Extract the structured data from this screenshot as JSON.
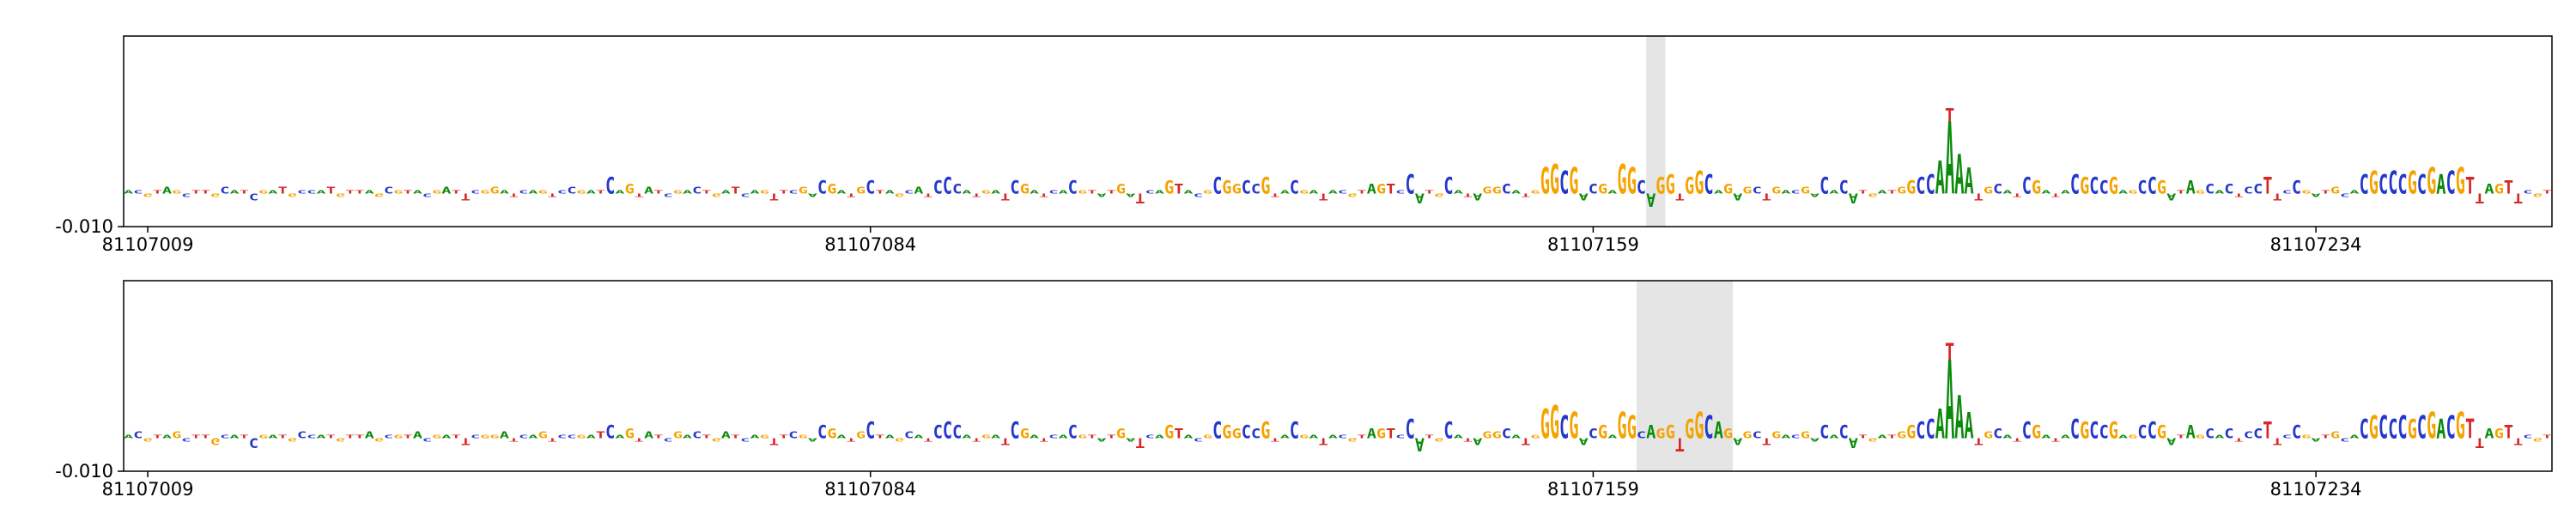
{
  "figure": {
    "kind": "genomic attribution sequence logo tracks",
    "background": "#ffffff",
    "border_color": "#000000",
    "highlight_color": "#dcdcdc"
  },
  "chart_data": {
    "type": "sequence-logo",
    "title": "",
    "xlabel": "",
    "ylabel": "",
    "x_start_bp": 81107007,
    "value_unit": 0.001,
    "ylim_milli": [
      -10,
      48
    ],
    "grid": false,
    "x_ticks": [
      {
        "bp": 81107009,
        "label": "81107009"
      },
      {
        "bp": 81107084,
        "label": "81107084"
      },
      {
        "bp": 81107159,
        "label": "81107159"
      },
      {
        "bp": 81107234,
        "label": "81107234"
      }
    ],
    "y_bottom_label": "-0.010",
    "base_colors": {
      "A": "#0c8a0c",
      "C": "#2438cc",
      "G": "#f5a300",
      "T": "#d62728"
    },
    "sequence": "ACGTAGCTTGCATCGATGCCATGTTAGCGTACGATTCGGATCAGTCCGATCAGTATCGACTGATCAGTTCGACGATGCTAGCATCCCATGATCGATCACGTATGATCAGTACGCGGCCGTACGATACGTAGTCCATGCATAGGCATGGGCGACGAGGCAGGTGGCAGAGCTGACGACACATGATGGCCAAAATGCATCGATACGCCGAGCCGATAGCACTCCTTCCGATGCACGCCCGCGACGTTAGTTCGT",
    "panels": [
      {
        "name": "track-1",
        "highlight": {
          "start_bp": 81107165,
          "end_bp": 81107166
        },
        "stacked": [
          {
            "index": 189,
            "letter": "T",
            "value": 4
          }
        ],
        "values": [
          1,
          1,
          -1,
          1,
          2,
          1,
          -1,
          1,
          1,
          -1,
          2,
          1,
          1,
          -2,
          1,
          1,
          2,
          -1,
          1,
          1,
          1,
          2,
          -1,
          1,
          1,
          1,
          -1,
          2,
          1,
          1,
          1,
          -1,
          1,
          2,
          1,
          -2,
          1,
          1,
          2,
          1,
          -1,
          1,
          1,
          1,
          -1,
          1,
          2,
          1,
          1,
          1,
          5,
          1,
          3,
          -1,
          2,
          1,
          -1,
          1,
          1,
          2,
          1,
          -1,
          1,
          2,
          -1,
          1,
          1,
          -2,
          1,
          1,
          2,
          -1,
          4,
          3,
          1,
          -1,
          2,
          4,
          1,
          1,
          -1,
          1,
          2,
          -1,
          4,
          5,
          3,
          1,
          -1,
          1,
          1,
          -2,
          4,
          3,
          1,
          -1,
          1,
          1,
          4,
          1,
          1,
          -1,
          1,
          3,
          -1,
          -3,
          1,
          1,
          4,
          3,
          1,
          -1,
          1,
          5,
          4,
          3,
          4,
          3,
          5,
          -1,
          1,
          4,
          1,
          1,
          -2,
          1,
          1,
          -1,
          1,
          3,
          3,
          3,
          1,
          6,
          -3,
          1,
          -1,
          5,
          1,
          -1,
          -2,
          2,
          2,
          3,
          1,
          -1,
          1,
          8,
          9,
          7,
          8,
          -2,
          3,
          3,
          1,
          9,
          8,
          4,
          -4,
          5,
          6,
          -2,
          5,
          7,
          6,
          1,
          3,
          -2,
          2,
          2,
          -2,
          2,
          1,
          1,
          2,
          -1,
          5,
          1,
          4,
          -3,
          1,
          -1,
          1,
          1,
          2,
          4,
          5,
          6,
          10,
          22,
          12,
          8,
          -2,
          2,
          3,
          1,
          -1,
          5,
          4,
          1,
          -1,
          1,
          6,
          5,
          5,
          4,
          5,
          1,
          1,
          4,
          5,
          4,
          -2,
          1,
          4,
          1,
          3,
          1,
          3,
          -1,
          2,
          3,
          5,
          -2,
          1,
          4,
          1,
          -1,
          1,
          2,
          -1,
          1,
          6,
          7,
          6,
          7,
          6,
          7,
          6,
          8,
          6,
          7,
          8,
          5,
          -3,
          3,
          3,
          4,
          -3,
          1,
          -1,
          1
        ]
      },
      {
        "name": "track-2",
        "highlight": {
          "start_bp": 81107164,
          "end_bp": 81107173
        },
        "stacked": [
          {
            "index": 189,
            "letter": "T",
            "value": 5
          }
        ],
        "values": [
          1,
          2,
          -1,
          1,
          1,
          2,
          -1,
          1,
          1,
          -2,
          1,
          1,
          1,
          -3,
          1,
          1,
          1,
          -1,
          2,
          1,
          1,
          1,
          -1,
          1,
          1,
          2,
          -1,
          1,
          1,
          1,
          2,
          -1,
          1,
          1,
          1,
          -2,
          1,
          1,
          1,
          2,
          -1,
          1,
          1,
          2,
          -1,
          1,
          1,
          1,
          1,
          2,
          4,
          1,
          3,
          -1,
          2,
          1,
          -1,
          2,
          1,
          2,
          1,
          -1,
          2,
          1,
          -1,
          1,
          1,
          -2,
          1,
          2,
          1,
          -1,
          4,
          3,
          1,
          -1,
          2,
          5,
          1,
          1,
          -1,
          2,
          1,
          -1,
          4,
          5,
          4,
          1,
          -1,
          1,
          1,
          -2,
          5,
          3,
          1,
          -1,
          1,
          1,
          4,
          1,
          1,
          -1,
          1,
          3,
          -1,
          -3,
          1,
          1,
          4,
          3,
          1,
          -1,
          1,
          5,
          4,
          3,
          4,
          3,
          5,
          -1,
          1,
          5,
          1,
          1,
          -2,
          1,
          1,
          -1,
          1,
          3,
          3,
          3,
          1,
          6,
          -4,
          1,
          -1,
          5,
          1,
          -1,
          -2,
          2,
          2,
          3,
          1,
          -2,
          1,
          9,
          10,
          7,
          8,
          -2,
          3,
          4,
          1,
          8,
          7,
          2,
          4,
          3,
          4,
          -4,
          6,
          8,
          7,
          5,
          3,
          -2,
          2,
          2,
          -2,
          2,
          1,
          1,
          2,
          -1,
          4,
          1,
          4,
          -3,
          1,
          -1,
          1,
          1,
          2,
          4,
          5,
          6,
          9,
          24,
          13,
          8,
          -2,
          2,
          3,
          1,
          -1,
          5,
          4,
          1,
          -1,
          1,
          6,
          5,
          5,
          4,
          5,
          1,
          1,
          4,
          5,
          4,
          -2,
          1,
          4,
          1,
          3,
          1,
          3,
          -1,
          2,
          3,
          5,
          -2,
          1,
          4,
          1,
          -1,
          1,
          2,
          -1,
          1,
          6,
          7,
          7,
          6,
          7,
          6,
          7,
          8,
          6,
          7,
          8,
          6,
          -3,
          3,
          3,
          4,
          -2,
          1,
          -1,
          1
        ]
      }
    ]
  }
}
